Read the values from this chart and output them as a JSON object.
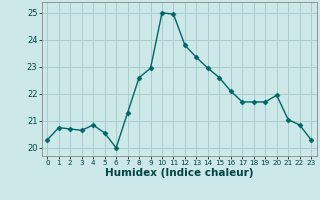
{
  "xlabel": "Humidex (Indice chaleur)",
  "x": [
    0,
    1,
    2,
    3,
    4,
    5,
    6,
    7,
    8,
    9,
    10,
    11,
    12,
    13,
    14,
    15,
    16,
    17,
    18,
    19,
    20,
    21,
    22,
    23
  ],
  "y": [
    20.3,
    20.75,
    20.7,
    20.65,
    20.85,
    20.55,
    20.0,
    21.3,
    22.6,
    22.95,
    25.0,
    24.95,
    23.8,
    23.35,
    22.95,
    22.6,
    22.1,
    21.7,
    21.7,
    21.7,
    21.95,
    21.05,
    20.85,
    20.3
  ],
  "line_color": "#006666",
  "marker": "D",
  "marker_size": 2.5,
  "bg_color": "#cce8e8",
  "grid_color": "#aacccc",
  "ylim": [
    19.7,
    25.4
  ],
  "yticks": [
    20,
    21,
    22,
    23,
    24,
    25
  ],
  "xlim": [
    -0.5,
    23.5
  ],
  "xticks": [
    0,
    1,
    2,
    3,
    4,
    5,
    6,
    7,
    8,
    9,
    10,
    11,
    12,
    13,
    14,
    15,
    16,
    17,
    18,
    19,
    20,
    21,
    22,
    23
  ],
  "xlabel_fontsize": 7.5,
  "tick_fontsize": 6,
  "line_width": 1.0
}
